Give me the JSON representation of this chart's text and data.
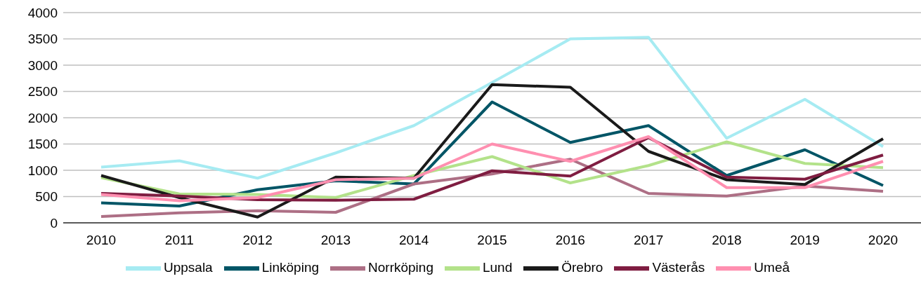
{
  "chart_data": {
    "type": "line",
    "categories": [
      "2010",
      "2011",
      "2012",
      "2013",
      "2014",
      "2015",
      "2016",
      "2017",
      "2018",
      "2019",
      "2020"
    ],
    "series": [
      {
        "name": "Uppsala",
        "color": "#a6ebf2",
        "values": [
          1060,
          1180,
          850,
          1330,
          1850,
          2670,
          3500,
          3530,
          1610,
          2350,
          1450
        ]
      },
      {
        "name": "Linköping",
        "color": "#005566",
        "values": [
          380,
          320,
          630,
          800,
          740,
          2300,
          1530,
          1850,
          900,
          1390,
          710
        ]
      },
      {
        "name": "Norrköping",
        "color": "#ad6f85",
        "values": [
          120,
          190,
          230,
          200,
          740,
          930,
          1210,
          560,
          510,
          700,
          600
        ]
      },
      {
        "name": "Lund",
        "color": "#b3e28a",
        "values": [
          860,
          550,
          540,
          480,
          900,
          1260,
          760,
          1090,
          1540,
          1130,
          1050
        ]
      },
      {
        "name": "Örebro",
        "color": "#1a1a1a",
        "values": [
          900,
          480,
          110,
          870,
          850,
          2630,
          2580,
          1360,
          820,
          730,
          1600
        ]
      },
      {
        "name": "Västerås",
        "color": "#7f1d41",
        "values": [
          560,
          510,
          440,
          430,
          450,
          990,
          890,
          1620,
          870,
          830,
          1290
        ]
      },
      {
        "name": "Umeå",
        "color": "#ff8fb0",
        "values": [
          540,
          420,
          480,
          820,
          850,
          1500,
          1170,
          1640,
          670,
          670,
          1170
        ]
      }
    ],
    "ylim": [
      0,
      4000
    ],
    "yticks": [
      0,
      500,
      1000,
      1500,
      2000,
      2500,
      3000,
      3500,
      4000
    ],
    "grid": "y",
    "legend": "bottom",
    "marker": "none",
    "line_style": "solid"
  }
}
